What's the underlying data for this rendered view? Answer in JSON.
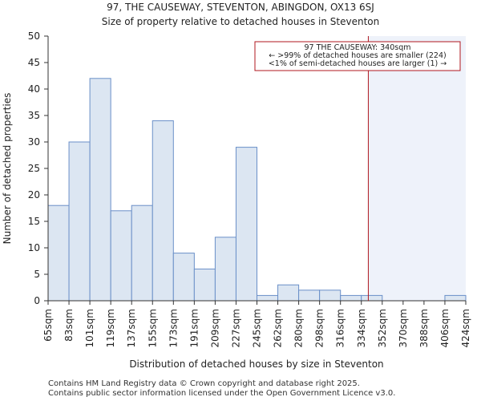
{
  "chart_data": {
    "type": "bar",
    "title": "97, THE CAUSEWAY, STEVENTON, ABINGDON, OX13 6SJ",
    "subtitle": "Size of property relative to detached houses in Steventon",
    "xlabel": "Distribution of detached houses by size in Steventon",
    "ylabel": "Number of detached properties",
    "tick_labels": [
      "65sqm",
      "83sqm",
      "101sqm",
      "119sqm",
      "137sqm",
      "155sqm",
      "173sqm",
      "191sqm",
      "209sqm",
      "227sqm",
      "245sqm",
      "262sqm",
      "280sqm",
      "298sqm",
      "316sqm",
      "334sqm",
      "352sqm",
      "370sqm",
      "388sqm",
      "406sqm",
      "424sqm"
    ],
    "bin_edges": [
      65,
      83,
      101,
      119,
      137,
      155,
      173,
      191,
      209,
      227,
      245,
      262,
      280,
      298,
      316,
      334,
      352,
      370,
      388,
      406,
      424
    ],
    "values": [
      18,
      30,
      42,
      17,
      18,
      34,
      9,
      6,
      12,
      29,
      1,
      3,
      2,
      2,
      1,
      1,
      0,
      0,
      0,
      1
    ],
    "ylim": [
      0,
      50
    ],
    "yticks": [
      0,
      5,
      10,
      15,
      20,
      25,
      30,
      35,
      40,
      45,
      50
    ],
    "property_value": 340,
    "annotation": [
      "97 THE CAUSEWAY: 340sqm",
      "← >99% of detached houses are smaller (224)",
      "<1% of semi-detached houses are larger (1) →"
    ],
    "colors": {
      "bar_fill": "#dce6f2",
      "bar_stroke": "#6a8fc8",
      "marker": "#b0171f",
      "highlight": "#eef2fa",
      "axis": "#333333"
    }
  },
  "footer": {
    "line1": "Contains HM Land Registry data © Crown copyright and database right 2025.",
    "line2": "Contains public sector information licensed under the Open Government Licence v3.0."
  }
}
